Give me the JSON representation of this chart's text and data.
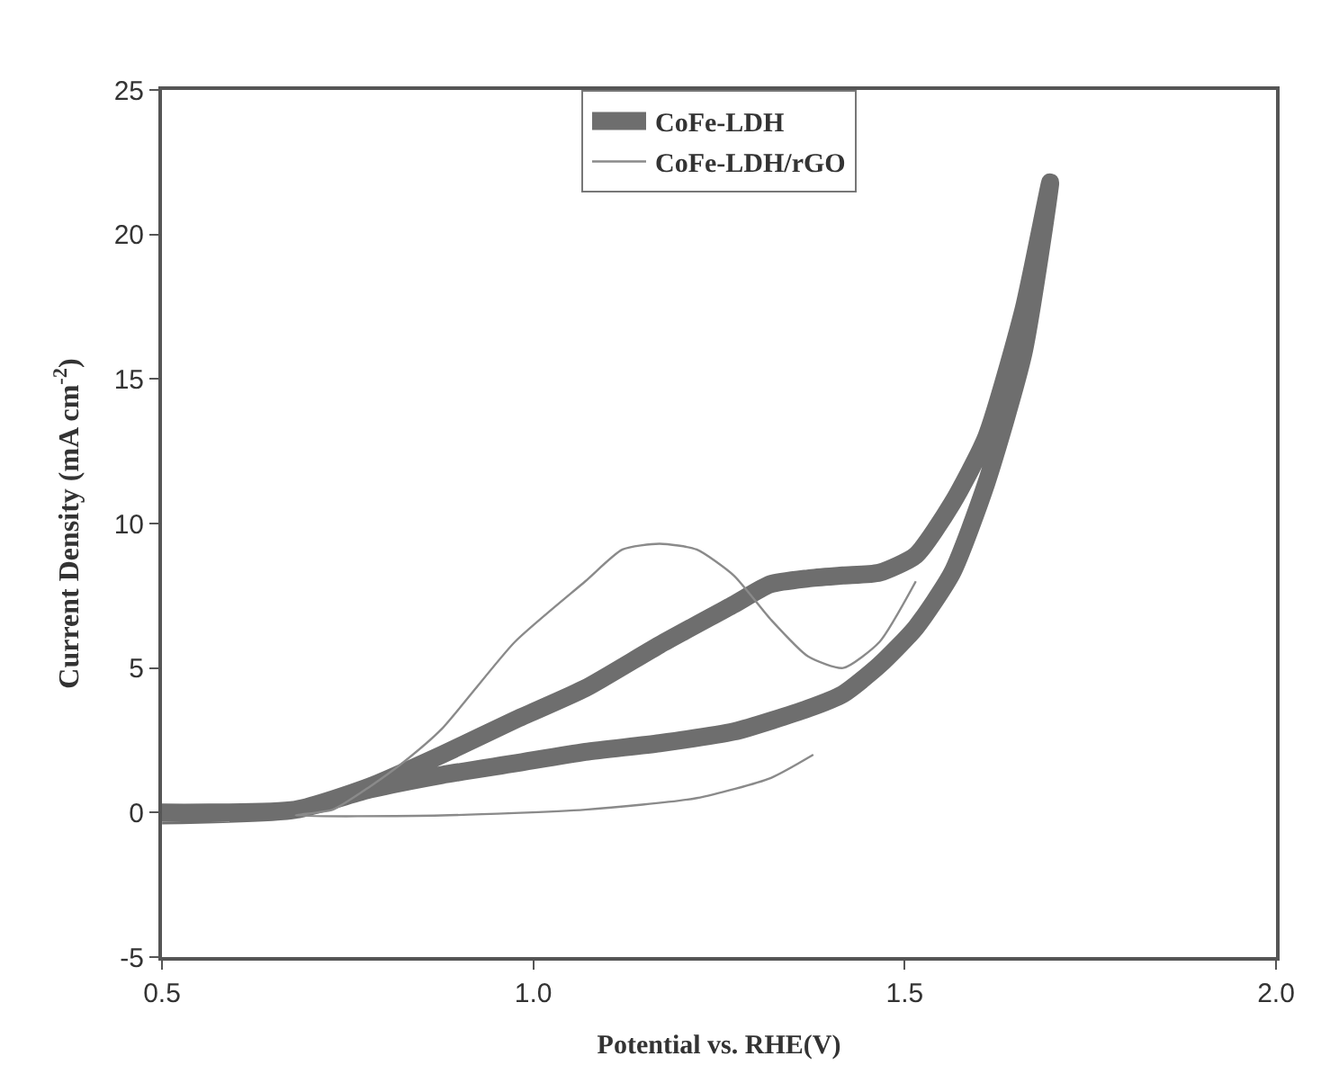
{
  "chart_data": {
    "type": "line",
    "xlabel": "Potential vs. RHE(V)",
    "ylabel": "Current Density (mA cm$^{-2}$)",
    "xlim": [
      0.5,
      2.0
    ],
    "xticks": [
      {
        "value": 0.5,
        "label": "0.5"
      },
      {
        "value": 1.0,
        "label": "1.0"
      },
      {
        "value": 1.5,
        "label": "1.5"
      },
      {
        "value": 2.0,
        "label": "2.0"
      }
    ],
    "ylim": [
      -5,
      25
    ],
    "yticks": [
      -5,
      0,
      5,
      10,
      15,
      20,
      25
    ],
    "legend": "top",
    "marker": "none",
    "line_style": "solid",
    "series": [
      {
        "name": "CoFe-LDH",
        "color": "#6e6e6e",
        "x": [
          0.5,
          0.68,
          0.78,
          0.877,
          0.975,
          1.07,
          1.17,
          1.27,
          1.37,
          1.417,
          1.466,
          1.515,
          1.564,
          1.61,
          1.66,
          1.696,
          1.66,
          1.61,
          1.564,
          1.515,
          1.466,
          1.417,
          1.37,
          1.319,
          1.27,
          1.17,
          1.07,
          0.975,
          0.877,
          0.78,
          0.68,
          0.5
        ],
        "values": [
          0,
          0.1,
          0.8,
          1.3,
          1.7,
          2.1,
          2.4,
          2.8,
          3.6,
          4.1,
          5.1,
          6.4,
          8.3,
          11.4,
          15.9,
          21.8,
          17.4,
          13,
          10.7,
          8.9,
          8.3,
          8.2,
          8.1,
          7.9,
          7.2,
          5.8,
          4.3,
          3.2,
          2.0,
          0.9,
          0.1,
          -0.1
        ]
      },
      {
        "name": "CoFe-LDH/rGO",
        "color": "#8a8a8a",
        "x": [
          1.515,
          1.466,
          1.417,
          1.37,
          1.319,
          1.27,
          1.22,
          1.17,
          1.12,
          1.07,
          0.975,
          0.877,
          0.828,
          0.78,
          0.73,
          0.68,
          0.877,
          1.07,
          1.22,
          1.32,
          1.377
        ],
        "values": [
          8.0,
          5.9,
          5.0,
          5.4,
          6.7,
          8.2,
          9.1,
          9.3,
          9.1,
          8.0,
          5.9,
          2.9,
          1.8,
          0.9,
          0.1,
          -0.1,
          -0.1,
          0.1,
          0.5,
          1.2,
          2.0
        ]
      }
    ]
  }
}
